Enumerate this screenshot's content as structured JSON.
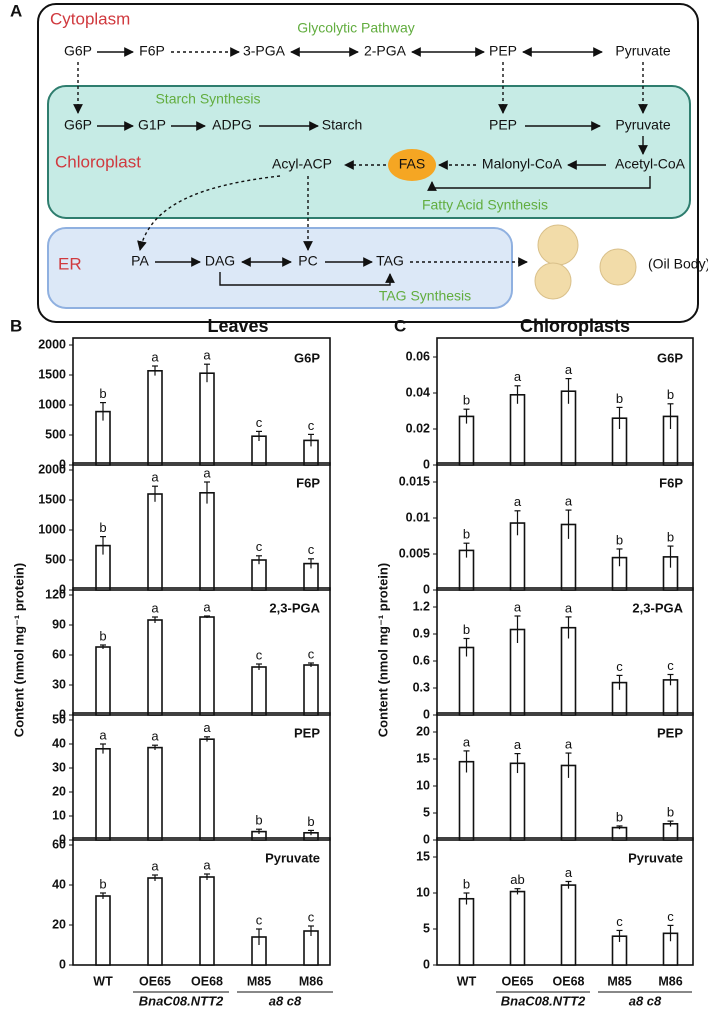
{
  "diagram": {
    "label": "A",
    "compartments": [
      "Cytoplasm",
      "Chloroplast",
      "ER"
    ],
    "pathways": [
      "Glycolytic Pathway",
      "Starch Synthesis",
      "Fatty Acid Synthesis",
      "TAG Synthesis"
    ],
    "nodes": [
      "G6P",
      "F6P",
      "3-PGA",
      "2-PGA",
      "PEP",
      "Pyruvate",
      "G6P",
      "G1P",
      "ADPG",
      "Starch",
      "PEP",
      "Pyruvate",
      "Acyl-ACP",
      "FAS",
      "Malonyl-CoA",
      "Acetyl-CoA",
      "PA",
      "DAG",
      "PC",
      "TAG"
    ],
    "oil_body": "(Oil Body)"
  },
  "panels": [
    {
      "label": "B",
      "title": "Leaves",
      "y_label": "Content (nmol mg⁻¹ protein)"
    },
    {
      "label": "C",
      "title": "Chloroplasts",
      "y_label": "Content (nmol mg⁻¹ protein)"
    }
  ],
  "chart_data": [
    {
      "type": "bar",
      "annotation": "G6P",
      "values": [
        890,
        1570,
        1530,
        480,
        410
      ],
      "errors": [
        150,
        80,
        150,
        80,
        100
      ],
      "letters": [
        "b",
        "a",
        "a",
        "c",
        "c"
      ],
      "ylim": [
        0,
        2000
      ],
      "yticks": [
        0,
        500,
        1000,
        1500,
        2000
      ]
    },
    {
      "type": "bar",
      "annotation": "F6P",
      "values": [
        740,
        1600,
        1620,
        500,
        440
      ],
      "errors": [
        150,
        130,
        180,
        70,
        80
      ],
      "letters": [
        "b",
        "a",
        "a",
        "c",
        "c"
      ],
      "ylim": [
        0,
        2000
      ],
      "yticks": [
        0,
        500,
        1000,
        1500,
        2000
      ]
    },
    {
      "type": "bar",
      "annotation": "2,3-PGA",
      "values": [
        68,
        95,
        98,
        48,
        50
      ],
      "errors": [
        2,
        3,
        1,
        3,
        2
      ],
      "letters": [
        "b",
        "a",
        "a",
        "c",
        "c"
      ],
      "ylim": [
        0,
        120
      ],
      "yticks": [
        0,
        30,
        60,
        90,
        120
      ]
    },
    {
      "type": "bar",
      "annotation": "PEP",
      "values": [
        38,
        38.5,
        42,
        3.5,
        3
      ],
      "errors": [
        2,
        1,
        1,
        1,
        1
      ],
      "letters": [
        "a",
        "a",
        "a",
        "b",
        "b"
      ],
      "ylim": [
        0,
        50
      ],
      "yticks": [
        0,
        10,
        20,
        30,
        40,
        50
      ]
    },
    {
      "type": "bar",
      "annotation": "Pyruvate",
      "values": [
        34.5,
        43.5,
        44,
        14,
        17
      ],
      "errors": [
        1.5,
        1.5,
        1.5,
        4,
        2.5
      ],
      "letters": [
        "b",
        "a",
        "a",
        "c",
        "c"
      ],
      "ylim": [
        0,
        60
      ],
      "yticks": [
        0,
        20,
        40,
        60
      ],
      "categories": [
        "WT",
        "OE65",
        "OE68",
        "M85",
        "M86"
      ],
      "groups": [
        "BnaC08.NTT2",
        "a8 c8"
      ]
    },
    {
      "type": "bar",
      "annotation": "G6P",
      "values": [
        0.027,
        0.039,
        0.041,
        0.026,
        0.027
      ],
      "errors": [
        0.004,
        0.005,
        0.007,
        0.006,
        0.007
      ],
      "letters": [
        "b",
        "a",
        "a",
        "b",
        "b"
      ],
      "ylim": [
        0,
        0.06
      ],
      "yticks": [
        0,
        0.02,
        0.04,
        0.06
      ]
    },
    {
      "type": "bar",
      "annotation": "F6P",
      "values": [
        0.0055,
        0.0093,
        0.0091,
        0.0045,
        0.0046
      ],
      "errors": [
        0.001,
        0.0017,
        0.002,
        0.0012,
        0.0015
      ],
      "letters": [
        "b",
        "a",
        "a",
        "b",
        "b"
      ],
      "ylim": [
        0,
        0.015
      ],
      "yticks": [
        0,
        0.005,
        0.01,
        0.015
      ]
    },
    {
      "type": "bar",
      "annotation": "2,3-PGA",
      "values": [
        0.75,
        0.95,
        0.97,
        0.36,
        0.39
      ],
      "errors": [
        0.1,
        0.15,
        0.12,
        0.08,
        0.06
      ],
      "letters": [
        "b",
        "a",
        "a",
        "c",
        "c"
      ],
      "ylim": [
        0,
        1.2
      ],
      "yticks": [
        0,
        0.3,
        0.6,
        0.9,
        1.2
      ]
    },
    {
      "type": "bar",
      "annotation": "PEP",
      "values": [
        14.5,
        14.2,
        13.8,
        2.3,
        3
      ],
      "errors": [
        2,
        1.8,
        2.3,
        0.3,
        0.5
      ],
      "letters": [
        "a",
        "a",
        "a",
        "b",
        "b"
      ],
      "ylim": [
        0,
        20
      ],
      "yticks": [
        0,
        5,
        10,
        15,
        20
      ]
    },
    {
      "type": "bar",
      "annotation": "Pyruvate",
      "values": [
        9.2,
        10.2,
        11.1,
        4,
        4.4
      ],
      "errors": [
        0.8,
        0.4,
        0.5,
        0.8,
        1.1
      ],
      "letters": [
        "b",
        "ab",
        "a",
        "c",
        "c"
      ],
      "ylim": [
        0,
        15
      ],
      "yticks": [
        0,
        5,
        10,
        15
      ],
      "categories": [
        "WT",
        "OE65",
        "OE68",
        "M85",
        "M86"
      ],
      "groups": [
        "BnaC08.NTT2",
        "a8 c8"
      ]
    }
  ]
}
